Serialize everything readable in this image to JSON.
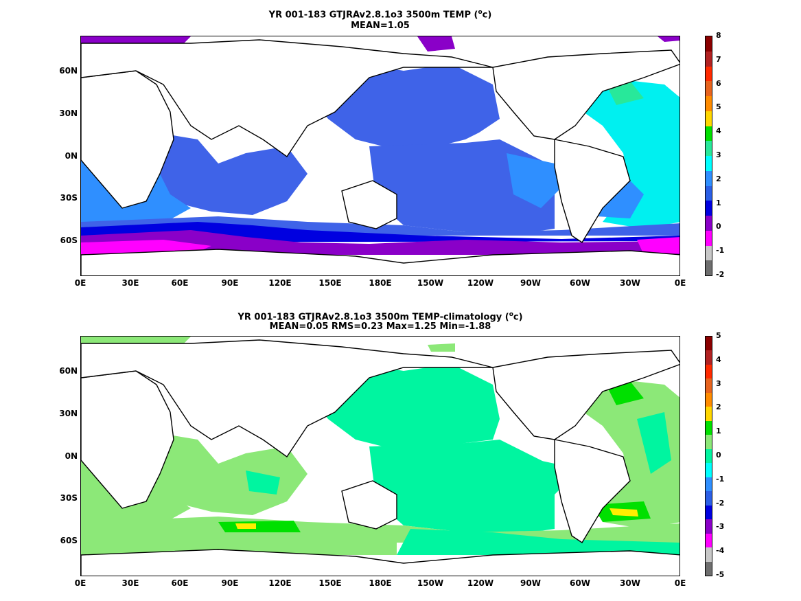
{
  "panels": [
    {
      "title_line1_pre": "YR 001-183 GTJRAv2.8.1o3 3500m TEMP (",
      "title_sup": "o",
      "title_line1_post": "c)",
      "title_line2": "MEAN=1.05",
      "colorbar": {
        "labels": [
          "8",
          "7",
          "6",
          "5",
          "4",
          "3",
          "2",
          "1",
          "0",
          "-1",
          "-2"
        ],
        "colors": [
          "#8b0000",
          "#b22222",
          "#ff2a00",
          "#e8641e",
          "#ff8c00",
          "#ffd700",
          "#00e000",
          "#28e89a",
          "#00ffff",
          "#2f8fff",
          "#2b5fe6",
          "#0000e0",
          "#8a00c8",
          "#ff00ff",
          "#c8c8c8",
          "#6e6e6e"
        ]
      }
    },
    {
      "title_line1_pre": "YR 001-183 GTJRAv2.8.1o3 3500m TEMP-climatology (",
      "title_sup": "o",
      "title_line1_post": "c)",
      "title_line2": "MEAN=0.05   RMS=0.23   Max=1.25   Min=-1.88",
      "colorbar": {
        "labels": [
          "5",
          "4",
          "3",
          "2",
          "1",
          "0",
          "-1",
          "-2",
          "-3",
          "-4",
          "-5"
        ],
        "colors": [
          "#8b0000",
          "#b22222",
          "#ff2a00",
          "#e8641e",
          "#ff8c00",
          "#ffd700",
          "#00e000",
          "#8ce878",
          "#00f5a0",
          "#00ffff",
          "#2f8fff",
          "#2b5fe6",
          "#0000e0",
          "#8a00c8",
          "#ff00ff",
          "#c8c8c8",
          "#6e6e6e"
        ]
      }
    }
  ],
  "axes": {
    "lat_labels": [
      "60N",
      "30N",
      "0N",
      "30S",
      "60S"
    ],
    "lon_labels": [
      "0E",
      "30E",
      "60E",
      "90E",
      "120E",
      "150E",
      "180E",
      "150W",
      "120W",
      "90W",
      "60W",
      "30W",
      "0E"
    ]
  },
  "colors": {
    "pacific_top": "#3f63e8",
    "atlantic_top": "#00f0f0",
    "indian_top": "#3f63e8",
    "southern_top": "#2f8fff",
    "deep_blue": "#0000e0",
    "purple": "#8a00c8",
    "magenta": "#ff00ff",
    "teal_top": "#28e89a",
    "pacific_bottom": "#00f5a0",
    "light_green": "#8ce878",
    "green": "#00e000",
    "yellow": "#ffee00"
  }
}
